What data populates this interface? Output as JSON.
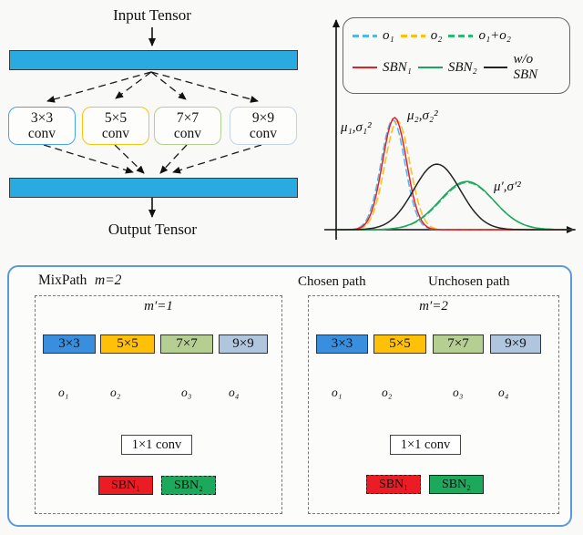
{
  "topleft": {
    "input_label": "Input Tensor",
    "output_label": "Output Tensor",
    "bar_color": "#29ABE2",
    "boxes": [
      {
        "size": "3×3",
        "type": "conv",
        "border_color": "#4DA3E8"
      },
      {
        "size": "5×5",
        "type": "conv",
        "border_color": "#F5C411"
      },
      {
        "size": "7×7",
        "type": "conv",
        "border_color": "#B5CE92"
      },
      {
        "size": "9×9",
        "type": "conv",
        "border_color": "#C3D3E8"
      }
    ]
  },
  "chart_data": {
    "type": "line",
    "title": "",
    "xlabel": "",
    "ylabel": "",
    "x_range": [
      0,
      10
    ],
    "y_range": [
      0,
      1.1
    ],
    "grid": false,
    "legend_position": "top",
    "series": [
      {
        "name": "o₁",
        "style": "dashed",
        "color": "#4DB8F0",
        "mean": 2.36,
        "std": 0.5,
        "peak": 0.98
      },
      {
        "name": "o₂",
        "style": "dashed",
        "color": "#FFC012",
        "mean": 2.55,
        "std": 0.52,
        "peak": 0.97
      },
      {
        "name": "o₁+o₂",
        "style": "dashed",
        "color": "#2EB872",
        "mean": 5.45,
        "std": 1.12,
        "peak": 0.42
      },
      {
        "name": "SBN₁",
        "style": "solid",
        "color": "#EC1C24",
        "mean": 2.43,
        "std": 0.5,
        "peak": 1.0
      },
      {
        "name": "SBN₂",
        "style": "solid",
        "color": "#17A95A",
        "mean": 5.43,
        "std": 1.12,
        "peak": 0.43
      },
      {
        "name": "w/o SBN",
        "style": "solid",
        "color": "#222222",
        "mean": 4.19,
        "std": 0.97,
        "peak": 0.585
      }
    ],
    "annotations": [
      "μ₁,σ₁²",
      "μ₂,σ₂²",
      "μ′,σ′²"
    ]
  },
  "mixpath": {
    "title": "MixPath",
    "m_label": "m=2",
    "legend": {
      "chosen": "Chosen path",
      "unchosen": "Unchosen path"
    },
    "colors": {
      "chosen_blue": "#3FA0F0",
      "chosen_yellow": "#FFC012",
      "sbn_red": "#EC1C24",
      "sbn_green": "#1CA95B",
      "panel_border": "#5B9BD5"
    },
    "panels": [
      {
        "m_prime": "m′=1",
        "boxes": [
          "3×3",
          "5×5",
          "7×7",
          "9×9"
        ],
        "outputs": [
          "o₁",
          "o₂",
          "o₃",
          "o₄"
        ],
        "conv_label": "1×1 conv",
        "sbn": [
          "SBN₁",
          "SBN₂"
        ],
        "active_sbn": "SBN₁",
        "chosen_paths": [
          "3×3"
        ]
      },
      {
        "m_prime": "m′=2",
        "boxes": [
          "3×3",
          "5×5",
          "7×7",
          "9×9"
        ],
        "outputs": [
          "o₁",
          "o₂",
          "o₃",
          "o₄"
        ],
        "conv_label": "1×1 conv",
        "sbn": [
          "SBN₁",
          "SBN₂"
        ],
        "active_sbn": "SBN₂",
        "chosen_paths": [
          "3×3",
          "5×5"
        ]
      }
    ]
  }
}
